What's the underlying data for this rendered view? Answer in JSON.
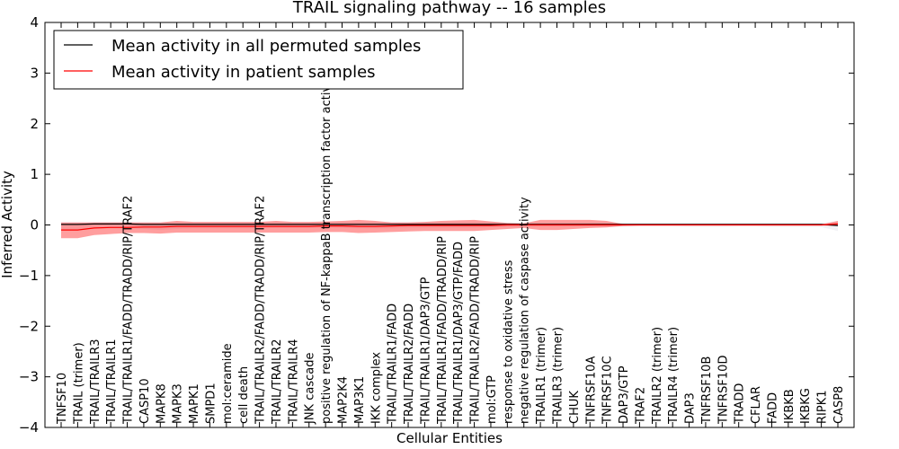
{
  "chart_data": {
    "type": "line",
    "title": "TRAIL signaling pathway -- 16 samples",
    "xlabel": "Cellular Entities",
    "ylabel": "Inferred Activity",
    "ylim": [
      -4,
      4
    ],
    "yticks": [
      "4",
      "3",
      "2",
      "1",
      "0",
      "−1",
      "−2",
      "−3",
      "−4"
    ],
    "grid": false,
    "legend_position": "top-left",
    "categories": [
      "TNFSF10",
      "TRAIL (trimer)",
      "TRAIL/TRAILR3",
      "TRAIL/TRAILR1",
      "TRAIL/TRAILR1/FADD/TRADD/RIP/TRAF2",
      "CASP10",
      "MAPK8",
      "MAPK3",
      "MAPK1",
      "SMPD1",
      "mol:ceramide",
      "cell death",
      "TRAIL/TRAILR2/FADD/TRADD/RIP/TRAF2",
      "TRAIL/TRAILR2",
      "TRAIL/TRAILR4",
      "JNK cascade",
      "positive regulation of NF-kappaB transcription factor activity",
      "MAP2K4",
      "MAP3K1",
      "IKK complex",
      "TRAIL/TRAILR1/FADD",
      "TRAIL/TRAILR2/FADD",
      "TRAIL/TRAILR1/DAP3/GTP",
      "TRAIL/TRAILR1/FADD/TRADD/RIP",
      "TRAIL/TRAILR1/DAP3/GTP/FADD",
      "TRAIL/TRAILR2/FADD/TRADD/RIP",
      "mol:GTP",
      "response to oxidative stress",
      "negative regulation of caspase activity",
      "TRAILR1 (trimer)",
      "TRAILR3 (trimer)",
      "CHUK",
      "TNFRSF10A",
      "TNFRSF10C",
      "DAP3/GTP",
      "TRAF2",
      "TRAILR2 (trimer)",
      "TRAILR4 (trimer)",
      "DAP3",
      "TNFRSF10B",
      "TNFRSF10D",
      "TRADD",
      "CFLAR",
      "FADD",
      "IKBKB",
      "IKBKG",
      "RIPK1",
      "CASP8"
    ],
    "series": [
      {
        "name": "Mean activity in all permuted samples",
        "color": "#000000",
        "band_color": "#d9d9e6",
        "values": [
          0.01,
          0.01,
          0.02,
          0.02,
          0.02,
          0.01,
          0.01,
          0.01,
          0.01,
          0.01,
          0.01,
          0.01,
          0.01,
          0.01,
          0.01,
          0.01,
          0.01,
          0.01,
          0.01,
          0.01,
          0.01,
          0.01,
          0.01,
          0.01,
          0.01,
          0.01,
          0.01,
          0.01,
          0.01,
          0.01,
          0.01,
          0.01,
          0.01,
          0.01,
          0.01,
          0.01,
          0.01,
          0.01,
          0.01,
          0.01,
          0.01,
          0.01,
          0.01,
          0.01,
          0.01,
          0.01,
          0.01,
          -0.01
        ],
        "lower": [
          -0.1,
          -0.1,
          -0.06,
          -0.05,
          -0.05,
          -0.08,
          -0.1,
          -0.08,
          -0.07,
          -0.07,
          -0.07,
          -0.07,
          -0.07,
          -0.06,
          -0.06,
          -0.06,
          -0.05,
          -0.06,
          -0.07,
          -0.07,
          -0.07,
          -0.06,
          -0.06,
          -0.06,
          -0.06,
          -0.06,
          -0.05,
          -0.04,
          -0.04,
          -0.03,
          -0.03,
          -0.03,
          -0.03,
          -0.04,
          -0.04,
          -0.03,
          -0.03,
          -0.03,
          -0.04,
          -0.04,
          -0.04,
          -0.03,
          -0.03,
          -0.04,
          -0.04,
          -0.04,
          -0.04,
          -0.12
        ],
        "upper": [
          0.06,
          0.06,
          0.06,
          0.06,
          0.06,
          0.06,
          0.06,
          0.06,
          0.06,
          0.06,
          0.06,
          0.06,
          0.06,
          0.06,
          0.06,
          0.06,
          0.06,
          0.06,
          0.06,
          0.06,
          0.06,
          0.06,
          0.06,
          0.06,
          0.06,
          0.06,
          0.06,
          0.04,
          0.04,
          0.04,
          0.04,
          0.04,
          0.04,
          0.04,
          0.03,
          0.03,
          0.03,
          0.03,
          0.03,
          0.03,
          0.03,
          0.03,
          0.03,
          0.03,
          0.03,
          0.03,
          0.03,
          0.08
        ]
      },
      {
        "name": "Mean activity in patient samples",
        "color": "#ff0000",
        "band_color": "#ff0000",
        "values": [
          -0.1,
          -0.1,
          -0.06,
          -0.05,
          -0.05,
          -0.04,
          -0.04,
          -0.03,
          -0.03,
          -0.03,
          -0.03,
          -0.03,
          -0.03,
          -0.03,
          -0.03,
          -0.03,
          -0.02,
          -0.02,
          -0.03,
          -0.03,
          -0.02,
          -0.01,
          -0.01,
          -0.01,
          -0.01,
          -0.01,
          -0.01,
          0.0,
          0.0,
          0.0,
          0.0,
          0.0,
          0.0,
          0.0,
          0.0,
          0.0,
          0.0,
          0.0,
          0.0,
          0.0,
          0.0,
          0.0,
          0.0,
          0.0,
          0.0,
          0.0,
          0.0,
          0.02
        ],
        "lower": [
          -0.26,
          -0.26,
          -0.2,
          -0.18,
          -0.16,
          -0.16,
          -0.17,
          -0.15,
          -0.15,
          -0.15,
          -0.15,
          -0.15,
          -0.15,
          -0.15,
          -0.15,
          -0.15,
          -0.14,
          -0.14,
          -0.16,
          -0.15,
          -0.14,
          -0.13,
          -0.12,
          -0.12,
          -0.12,
          -0.12,
          -0.1,
          -0.08,
          -0.06,
          -0.1,
          -0.1,
          -0.08,
          -0.06,
          -0.05,
          -0.02,
          -0.01,
          -0.01,
          -0.01,
          -0.01,
          -0.01,
          -0.01,
          -0.01,
          -0.01,
          -0.01,
          -0.01,
          -0.01,
          -0.01,
          -0.02
        ],
        "upper": [
          0.05,
          0.05,
          0.05,
          0.05,
          0.05,
          0.05,
          0.05,
          0.08,
          0.06,
          0.06,
          0.06,
          0.06,
          0.06,
          0.08,
          0.06,
          0.06,
          0.07,
          0.08,
          0.1,
          0.08,
          0.05,
          0.05,
          0.06,
          0.08,
          0.09,
          0.1,
          0.07,
          0.04,
          0.03,
          0.1,
          0.1,
          0.1,
          0.1,
          0.08,
          0.02,
          0.01,
          0.01,
          0.01,
          0.01,
          0.01,
          0.01,
          0.01,
          0.01,
          0.01,
          0.01,
          0.01,
          0.01,
          0.08
        ]
      }
    ]
  }
}
